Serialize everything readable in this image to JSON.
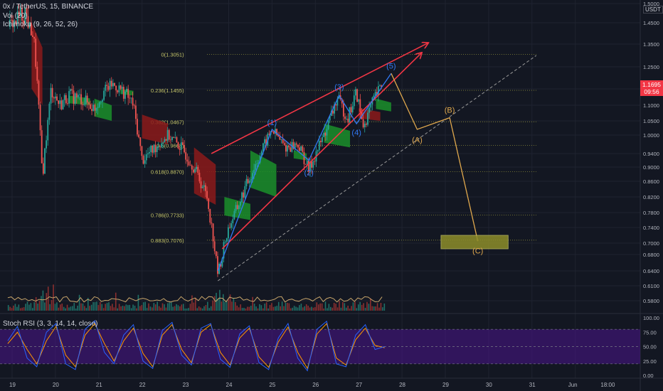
{
  "header": {
    "symbol_line": "0x / TetherUS, 15, BINANCE",
    "volume_line": "Vol (20)",
    "ichimoku_line": "Ichimoku (9, 26, 52, 26)",
    "stoch_line": "Stoch RSI (3, 3, 14, 14, close)"
  },
  "price_axis": {
    "currency": "USDT",
    "ticks": [
      "1.5000",
      "1.4500",
      "1.3500",
      "1.2500",
      "1.1500",
      "1.1000",
      "1.0500",
      "1.0000",
      "0.9400",
      "0.9000",
      "0.8600",
      "0.8200",
      "0.7800",
      "0.7400",
      "0.7000",
      "0.6800",
      "0.6400",
      "0.6100",
      "0.5800"
    ],
    "last_price": "1.1695",
    "countdown": "09:56"
  },
  "stoch_axis": {
    "ticks": [
      "100.00",
      "75.00",
      "50.00",
      "25.00",
      "0.00"
    ]
  },
  "time_axis": {
    "ticks": [
      "19",
      "20",
      "21",
      "22",
      "23",
      "24",
      "25",
      "26",
      "27",
      "28",
      "29",
      "30",
      "31",
      "Jun",
      "18:00"
    ]
  },
  "fib_levels": [
    {
      "label": "0(1.3051)",
      "price": 1.3051
    },
    {
      "label": "0.236(1.1455)",
      "price": 1.1455
    },
    {
      "label": "0.382(1.0467)",
      "price": 1.0467
    },
    {
      "label": "0.5(0.9668)",
      "price": 0.9668
    },
    {
      "label": "0.618(0.8870)",
      "price": 0.887
    },
    {
      "label": "0.786(0.7733)",
      "price": 0.7733
    },
    {
      "label": "0.883(0.7076)",
      "price": 0.7076
    }
  ],
  "wave_labels": [
    "(1)",
    "(2)",
    "(3)",
    "(4)",
    "(5)",
    "(A)",
    "(B)",
    "(C)"
  ],
  "colors": {
    "background": "#131722",
    "bull": "#26a69a",
    "bear": "#ef5350",
    "fib": "#8d8d3a",
    "fib_text": "#c8c86a",
    "wedge": "#f23645",
    "impulse": "#3179f5",
    "correction": "#e0a84d",
    "stoch_band": "#4a148c",
    "cloud_green": "#1b8f2a",
    "cloud_red": "#8c1a1a"
  },
  "chart_data": {
    "type": "line",
    "title": "0x / TetherUS, 15, BINANCE",
    "xlabel": "",
    "ylabel": "",
    "ylim": [
      0.57,
      1.52
    ],
    "x_unit": "day of month (May)",
    "series": [
      {
        "values": [
          [
            18.9,
            1.43
          ],
          [
            19.3,
            1.48
          ],
          [
            19.5,
            1.38
          ],
          [
            19.7,
            0.87
          ],
          [
            19.9,
            1.15
          ],
          [
            20.1,
            1.1
          ],
          [
            20.3,
            1.13
          ],
          [
            20.6,
            1.12
          ],
          [
            20.9,
            1.09
          ],
          [
            21.1,
            1.14
          ],
          [
            21.3,
            1.17
          ],
          [
            21.6,
            1.14
          ],
          [
            21.8,
            1.1
          ],
          [
            22.0,
            0.92
          ],
          [
            22.3,
            0.96
          ],
          [
            22.6,
            1.0
          ],
          [
            22.9,
            0.96
          ],
          [
            23.2,
            0.9
          ],
          [
            23.5,
            0.82
          ],
          [
            23.75,
            0.635
          ],
          [
            24.0,
            0.74
          ],
          [
            24.3,
            0.82
          ],
          [
            24.7,
            0.93
          ],
          [
            25.0,
            1.02
          ],
          [
            25.3,
            0.96
          ],
          [
            25.6,
            0.97
          ],
          [
            25.85,
            0.89
          ],
          [
            26.2,
            1.0
          ],
          [
            26.5,
            1.12
          ],
          [
            26.75,
            1.06
          ],
          [
            26.95,
            1.14
          ],
          [
            27.1,
            1.03
          ],
          [
            27.3,
            1.1
          ],
          [
            27.55,
            1.1695
          ]
        ]
      },
      {
        "name": "(1)-(5)",
        "values": [
          [
            23.75,
            0.64
          ],
          [
            25.0,
            1.02
          ],
          [
            25.85,
            0.92
          ],
          [
            26.55,
            1.13
          ],
          [
            26.95,
            1.04
          ],
          [
            27.75,
            1.22
          ]
        ]
      },
      {
        "name": "(A)-(B)-(C)",
        "values": [
          [
            27.75,
            1.22
          ],
          [
            28.35,
            1.02
          ],
          [
            29.1,
            1.06
          ],
          [
            29.75,
            0.705
          ]
        ]
      }
    ],
    "target_zone": {
      "x": [
        28.9,
        30.45
      ],
      "y": [
        0.69,
        0.72
      ]
    },
    "wedge_lines": [
      [
        [
          23.6,
          0.94
        ],
        [
          28.6,
          1.33
        ]
      ],
      [
        [
          23.85,
          0.69
        ],
        [
          28.45,
          1.33
        ]
      ]
    ],
    "dashed_channel": [
      [
        23.75,
        0.62
      ],
      [
        31.1,
        1.3
      ]
    ],
    "stoch_rsi": {
      "ylim": [
        0,
        100
      ],
      "upper_band": 80,
      "lower_band": 20,
      "k": [
        60,
        85,
        30,
        15,
        75,
        90,
        20,
        10,
        80,
        95,
        40,
        20,
        70,
        88,
        25,
        12,
        78,
        92,
        35,
        18,
        82,
        90,
        28,
        14,
        72,
        86,
        22,
        10,
        65,
        90,
        30,
        8,
        80,
        94,
        20,
        15,
        70,
        88,
        45,
        50
      ],
      "d": [
        55,
        75,
        45,
        20,
        60,
        85,
        35,
        15,
        70,
        90,
        55,
        25,
        60,
        82,
        38,
        15,
        70,
        88,
        45,
        22,
        75,
        88,
        40,
        18,
        65,
        82,
        32,
        14,
        58,
        84,
        40,
        12,
        72,
        90,
        30,
        18,
        62,
        82,
        52,
        48
      ]
    }
  }
}
